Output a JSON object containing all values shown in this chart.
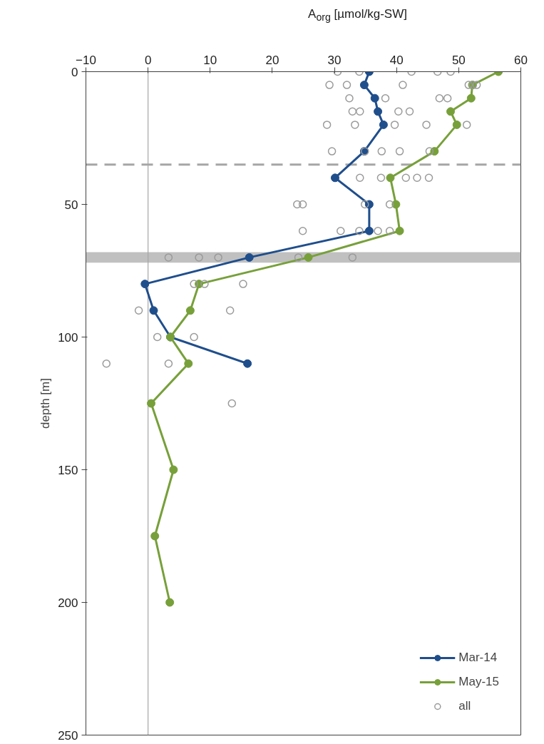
{
  "chart_data": {
    "type": "line",
    "xlabel": "A$_{org}$ [µmol/kg-SW]",
    "ylabel": "depth [m]",
    "xlim": [
      -10,
      60
    ],
    "xticks": [
      -10,
      0,
      10,
      20,
      30,
      40,
      50,
      60
    ],
    "ylim": [
      250,
      0
    ],
    "yticks": [
      0,
      50,
      100,
      150,
      200,
      250
    ],
    "grid": false,
    "legend": "bottom right",
    "marker": "circle",
    "line_style": "solid",
    "series": [
      {
        "name": "Mar-14",
        "color": "#1f4e8c",
        "x": [
          35.6,
          34.8,
          36.5,
          37.0,
          37.9,
          34.8,
          30.1,
          35.6,
          35.6,
          16.3,
          -0.5,
          0.9,
          3.6,
          16.0
        ],
        "values": [
          0,
          5,
          10,
          15,
          20,
          30,
          40,
          50,
          60,
          70,
          80,
          90,
          100,
          110
        ]
      },
      {
        "name": "May-15",
        "color": "#77a03a",
        "x": [
          56.4,
          52.2,
          52.0,
          48.7,
          49.7,
          46.1,
          39.0,
          39.9,
          40.5,
          25.8,
          8.2,
          6.8,
          3.6,
          6.5,
          0.5,
          4.1,
          1.1,
          3.5
        ],
        "values": [
          0,
          5,
          10,
          15,
          20,
          30,
          40,
          50,
          60,
          70,
          80,
          90,
          100,
          110,
          125,
          150,
          175,
          200
        ]
      },
      {
        "name": "all",
        "type": "scatter",
        "color": "#9a9a9a",
        "x": [
          30.5,
          34.0,
          42.4,
          46.6,
          48.7,
          29.2,
          32.0,
          41.0,
          51.6,
          52.3,
          52.9,
          32.4,
          38.2,
          46.9,
          48.2,
          32.9,
          34.1,
          40.3,
          42.1,
          28.8,
          33.3,
          39.7,
          44.8,
          51.3,
          29.6,
          34.9,
          37.6,
          40.5,
          45.3,
          34.1,
          37.5,
          41.5,
          43.3,
          45.2,
          24.0,
          24.9,
          34.9,
          38.9,
          24.9,
          31.0,
          34.0,
          37.0,
          38.9,
          24.2,
          32.9,
          3.3,
          8.2,
          11.3,
          7.4,
          9.1,
          15.3,
          -1.5,
          13.2,
          1.5,
          7.4,
          -6.7,
          3.3,
          13.5
        ],
        "values": [
          0,
          0,
          0,
          0,
          0,
          5,
          5,
          5,
          5,
          5,
          5,
          10,
          10,
          10,
          10,
          15,
          15,
          15,
          15,
          20,
          20,
          20,
          20,
          20,
          30,
          30,
          30,
          30,
          30,
          40,
          40,
          40,
          40,
          40,
          50,
          50,
          50,
          50,
          60,
          60,
          60,
          60,
          60,
          70,
          70,
          70,
          70,
          70,
          80,
          80,
          80,
          90,
          90,
          100,
          100,
          110,
          110,
          125
        ]
      }
    ],
    "ref_lines": [
      {
        "axis": "y",
        "value": 35,
        "color": "#a6a6a6",
        "line_style": "dashed"
      },
      {
        "axis": "x",
        "value": 0,
        "color": "#a6a6a6",
        "line_style": "solid"
      }
    ],
    "bands": [
      {
        "axis": "y",
        "from": 68,
        "to": 72,
        "color": "#c0c0c0"
      }
    ]
  }
}
